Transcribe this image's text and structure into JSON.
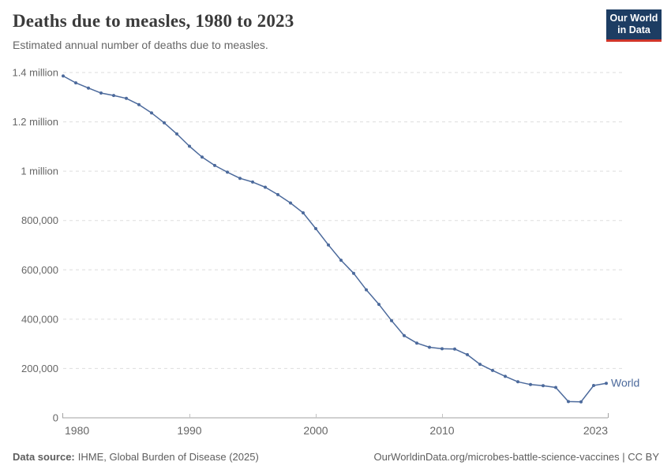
{
  "header": {
    "title": "Deaths due to measles, 1980 to 2023",
    "subtitle": "Estimated annual number of deaths due to measles."
  },
  "logo": {
    "line1": "Our World",
    "line2": "in Data",
    "bg_color": "#1d3d63",
    "accent_color": "#d0352a"
  },
  "chart_data": {
    "type": "line",
    "title": "Deaths due to measles, 1980 to 2023",
    "subtitle": "Estimated annual number of deaths due to measles.",
    "xlabel": "",
    "ylabel": "",
    "xlim": [
      1980,
      2023
    ],
    "ylim": [
      0,
      1400000
    ],
    "grid": "dashed-horizontal",
    "legend_position": "end-of-line",
    "x": [
      1980,
      1981,
      1982,
      1983,
      1984,
      1985,
      1986,
      1987,
      1988,
      1989,
      1990,
      1991,
      1992,
      1993,
      1994,
      1995,
      1996,
      1997,
      1998,
      1999,
      2000,
      2001,
      2002,
      2003,
      2004,
      2005,
      2006,
      2007,
      2008,
      2009,
      2010,
      2011,
      2012,
      2013,
      2014,
      2015,
      2016,
      2017,
      2018,
      2019,
      2020,
      2021,
      2022,
      2023
    ],
    "series": [
      {
        "name": "World",
        "color": "#4c6a9c",
        "values": [
          1386000,
          1358000,
          1337000,
          1317000,
          1307000,
          1295000,
          1270000,
          1236000,
          1196000,
          1151000,
          1101000,
          1057000,
          1023000,
          996000,
          971000,
          956000,
          935000,
          905000,
          871000,
          831000,
          767000,
          701000,
          639000,
          586000,
          519000,
          460000,
          394000,
          333000,
          303000,
          286000,
          280000,
          279000,
          256000,
          217000,
          192000,
          168000,
          146000,
          135000,
          130000,
          123000,
          66000,
          65000,
          131000,
          140000
        ]
      }
    ],
    "yticks": [
      {
        "value": 0,
        "label": "0"
      },
      {
        "value": 200000,
        "label": "200,000"
      },
      {
        "value": 400000,
        "label": "400,000"
      },
      {
        "value": 600000,
        "label": "600,000"
      },
      {
        "value": 800000,
        "label": "800,000"
      },
      {
        "value": 1000000,
        "label": "1 million"
      },
      {
        "value": 1200000,
        "label": "1.2 million"
      },
      {
        "value": 1400000,
        "label": "1.4 million"
      }
    ],
    "xticks": [
      {
        "value": 1980,
        "label": "1980"
      },
      {
        "value": 1990,
        "label": "1990"
      },
      {
        "value": 2000,
        "label": "2000"
      },
      {
        "value": 2010,
        "label": "2010"
      },
      {
        "value": 2023,
        "label": "2023"
      }
    ],
    "colors": {
      "line": "#4c6a9c",
      "gridline": "#dddddd",
      "axis": "#a1a1a1",
      "tick": "#c2c2c2",
      "axis_text": "#666666"
    }
  },
  "footer": {
    "source_label": "Data source:",
    "source_text": "IHME, Global Burden of Disease (2025)",
    "credit": "OurWorldinData.org/microbes-battle-science-vaccines | CC BY"
  }
}
